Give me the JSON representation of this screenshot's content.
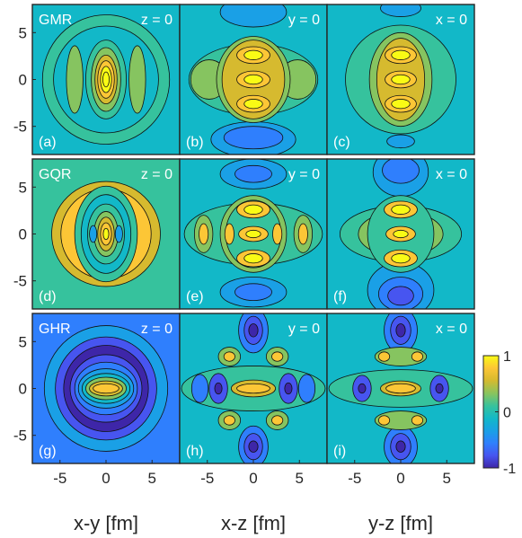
{
  "chart_data": {
    "type": "heatmap",
    "grid": "off",
    "xlim": [
      -8,
      8
    ],
    "ylim": [
      -8,
      8
    ],
    "x_ticks": [
      -5,
      0,
      5
    ],
    "y_ticks": [
      5,
      0,
      -5
    ],
    "x_tick_labels": [
      "-5",
      "0",
      "5"
    ],
    "y_tick_labels": [
      "5",
      "0",
      "-5"
    ],
    "x_axis_labels": [
      "x-y [fm]",
      "x-z [fm]",
      "y-z [fm]"
    ],
    "rows": [
      {
        "mode": "GMR",
        "panels": [
          {
            "label": "(a)",
            "plane": "z = 0"
          },
          {
            "label": "(b)",
            "plane": "y = 0"
          },
          {
            "label": "(c)",
            "plane": "x = 0"
          }
        ]
      },
      {
        "mode": "GQR",
        "panels": [
          {
            "label": "(d)",
            "plane": "z = 0"
          },
          {
            "label": "(e)",
            "plane": "y = 0"
          },
          {
            "label": "(f)",
            "plane": "x = 0"
          }
        ]
      },
      {
        "mode": "GHR",
        "panels": [
          {
            "label": "(g)",
            "plane": "z = 0"
          },
          {
            "label": "(h)",
            "plane": "y = 0"
          },
          {
            "label": "(i)",
            "plane": "x = 0"
          }
        ]
      }
    ],
    "colorbar": {
      "range": [
        -1,
        1
      ],
      "ticks": [
        1,
        0,
        -1
      ],
      "tick_labels": [
        "1",
        "0",
        "-1"
      ],
      "colors": [
        "#3e26a8",
        "#4755f0",
        "#2f7ffd",
        "#1aa0e6",
        "#12b8c8",
        "#36c29d",
        "#86c460",
        "#d6ba2f",
        "#fcc636",
        "#f9fb15"
      ]
    }
  }
}
